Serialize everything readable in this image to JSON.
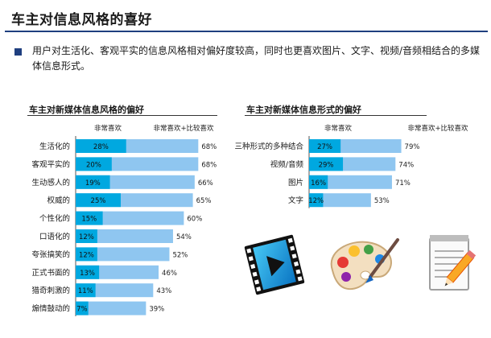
{
  "page": {
    "title": "车主对信息风格的喜好",
    "intro": "用户对生活化、客观平实的信息风格相对偏好度较高，同时也更喜欢图片、文字、视频/音频相结合的多媒体信息形式。"
  },
  "colors": {
    "dark_bar": "#00a8e0",
    "light_bar": "#8fc6f0",
    "rule": "#1f3f7f"
  },
  "icons": [
    "film-strip-icon",
    "paint-palette-icon",
    "notepad-pencil-icon"
  ],
  "chart_data": [
    {
      "type": "bar",
      "title": "车主对新媒体信息风格的偏好",
      "series": [
        {
          "name": "非常喜欢",
          "values": [
            28,
            20,
            19,
            25,
            15,
            12,
            12,
            13,
            11,
            7
          ]
        },
        {
          "name": "非常喜欢+比较喜欢",
          "values": [
            68,
            68,
            66,
            65,
            60,
            54,
            52,
            46,
            43,
            39
          ]
        }
      ],
      "categories": [
        "生活化的",
        "客观平实的",
        "生动感人的",
        "权威的",
        "个性化的",
        "口语化的",
        "夸张搞笑的",
        "正式书面的",
        "猎奇刺激的",
        "煽情鼓动的"
      ],
      "value_suffix": "%"
    },
    {
      "type": "bar",
      "title": "车主对新媒体信息形式的偏好",
      "series": [
        {
          "name": "非常喜欢",
          "values": [
            27,
            29,
            16,
            12
          ]
        },
        {
          "name": "非常喜欢+比较喜欢",
          "values": [
            79,
            74,
            71,
            53
          ]
        }
      ],
      "categories": [
        "三种形式的多种结合",
        "视频/音频",
        "图片",
        "文字"
      ],
      "value_suffix": "%"
    }
  ]
}
